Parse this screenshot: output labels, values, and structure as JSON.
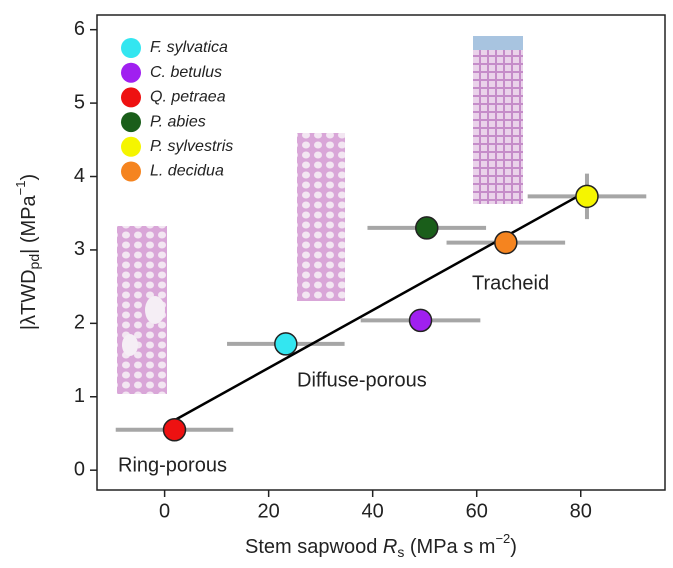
{
  "chart_data": {
    "type": "scatter",
    "xlabel": [
      "Stem sapwood ",
      "R",
      "s",
      " (MPa s m",
      "−2",
      ")"
    ],
    "ylabel": [
      "|λTWD",
      "pd",
      "| (MPa",
      "−1",
      ")"
    ],
    "xlim": [
      -13,
      96.2
    ],
    "ylim": [
      -0.27,
      6.2
    ],
    "xticks": [
      0,
      20,
      40,
      60,
      80
    ],
    "yticks": [
      0,
      1,
      2,
      3,
      4,
      5,
      6
    ],
    "grid": false,
    "legend": "upper left",
    "series": [
      {
        "name": "F. sylvatica",
        "color": "#33e6f0",
        "x": [
          23.3
        ],
        "values": [
          1.72
        ],
        "x_err": [
          11.3
        ]
      },
      {
        "name": "C. betulus",
        "color": "#a020f0",
        "x": [
          49.2
        ],
        "values": [
          2.04
        ],
        "x_err": [
          11.5
        ]
      },
      {
        "name": "Q. petraea",
        "color": "#ee1111",
        "x": [
          1.9
        ],
        "values": [
          0.55
        ],
        "x_err": [
          11.3
        ]
      },
      {
        "name": "P. abies",
        "color": "#1a5e1a",
        "x": [
          50.4
        ],
        "values": [
          3.3
        ],
        "x_err": [
          11.4
        ]
      },
      {
        "name": "P. sylvestris",
        "color": "#f5f500",
        "x": [
          81.2
        ],
        "values": [
          3.73
        ],
        "x_err": [
          11.4
        ],
        "y_err": [
          0.31
        ]
      },
      {
        "name": "L. decidua",
        "color": "#f5841f",
        "x": [
          65.6
        ],
        "values": [
          3.1
        ],
        "x_err": [
          11.4
        ]
      }
    ],
    "fit": {
      "x": [
        1.9,
        81.2
      ],
      "values": [
        0.68,
        3.8
      ]
    },
    "annotations": [
      "Ring-porous",
      "Diffuse-porous",
      "Tracheid"
    ]
  }
}
